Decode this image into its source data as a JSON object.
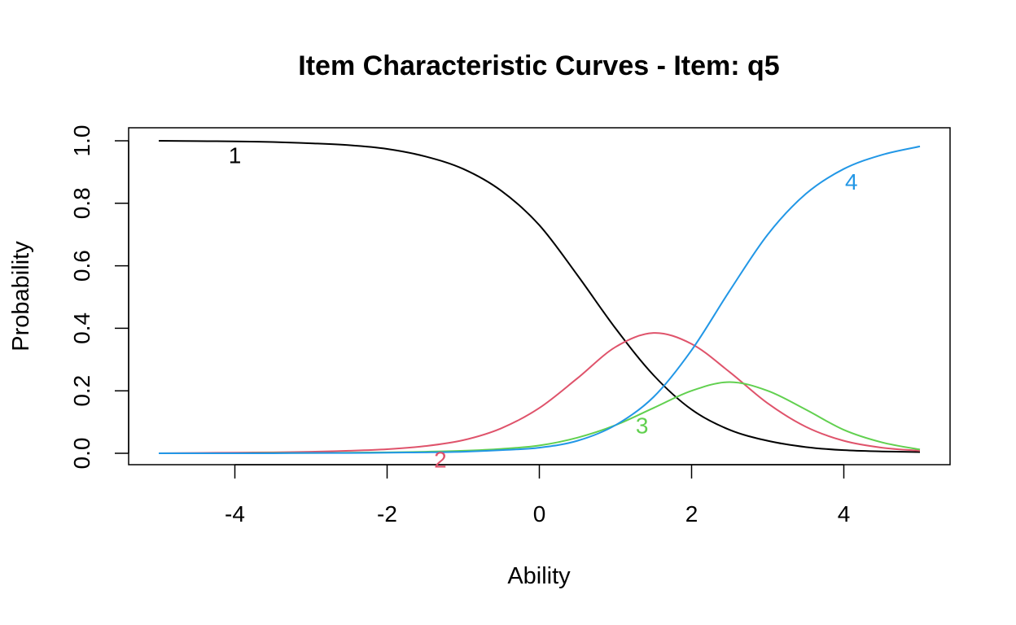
{
  "chart_data": {
    "type": "line",
    "title": "Item Characteristic Curves - Item: q5",
    "xlabel": "Ability",
    "ylabel": "Probability",
    "xlim": [
      -5,
      5
    ],
    "ylim": [
      0,
      1
    ],
    "x_ticks": [
      -4,
      -2,
      0,
      2,
      4
    ],
    "x_tick_labels": [
      "-4",
      "-2",
      "0",
      "2",
      "4"
    ],
    "y_ticks": [
      0,
      0.2,
      0.4,
      0.6,
      0.8,
      1
    ],
    "y_tick_labels": [
      "0.0",
      "0.2",
      "0.4",
      "0.6",
      "0.8",
      "1.0"
    ],
    "grid": false,
    "legend": "none",
    "x": [
      -5,
      -4.5,
      -4,
      -3.5,
      -3,
      -2.5,
      -2,
      -1.5,
      -1,
      -0.5,
      0,
      0.5,
      1,
      1.5,
      2,
      2.5,
      3,
      3.5,
      4,
      4.5,
      5
    ],
    "series": [
      {
        "name": "1",
        "color": "#000000",
        "values": [
          1.0,
          0.999,
          0.998,
          0.996,
          0.992,
          0.986,
          0.974,
          0.95,
          0.91,
          0.84,
          0.73,
          0.57,
          0.4,
          0.25,
          0.14,
          0.075,
          0.04,
          0.02,
          0.01,
          0.006,
          0.004
        ],
        "label_pos": [
          -4,
          0.955
        ]
      },
      {
        "name": "2",
        "color": "#DF536B",
        "values": [
          0.0,
          0.001,
          0.002,
          0.003,
          0.005,
          0.008,
          0.013,
          0.023,
          0.042,
          0.08,
          0.145,
          0.24,
          0.34,
          0.385,
          0.35,
          0.26,
          0.16,
          0.085,
          0.04,
          0.018,
          0.008
        ],
        "label_pos": [
          -1.3,
          -0.02
        ]
      },
      {
        "name": "3",
        "color": "#61D04F",
        "values": [
          0.0,
          0.0,
          0.0,
          0.001,
          0.001,
          0.002,
          0.003,
          0.005,
          0.008,
          0.014,
          0.025,
          0.05,
          0.09,
          0.145,
          0.2,
          0.228,
          0.2,
          0.14,
          0.075,
          0.035,
          0.012
        ],
        "label_pos": [
          1.35,
          0.09
        ]
      },
      {
        "name": "4",
        "color": "#2297E6",
        "values": [
          0.0,
          0.0,
          0.0,
          0.0,
          0.001,
          0.001,
          0.002,
          0.003,
          0.005,
          0.01,
          0.018,
          0.04,
          0.09,
          0.18,
          0.33,
          0.52,
          0.7,
          0.83,
          0.91,
          0.955,
          0.982
        ],
        "label_pos": [
          4.1,
          0.87
        ]
      }
    ]
  }
}
